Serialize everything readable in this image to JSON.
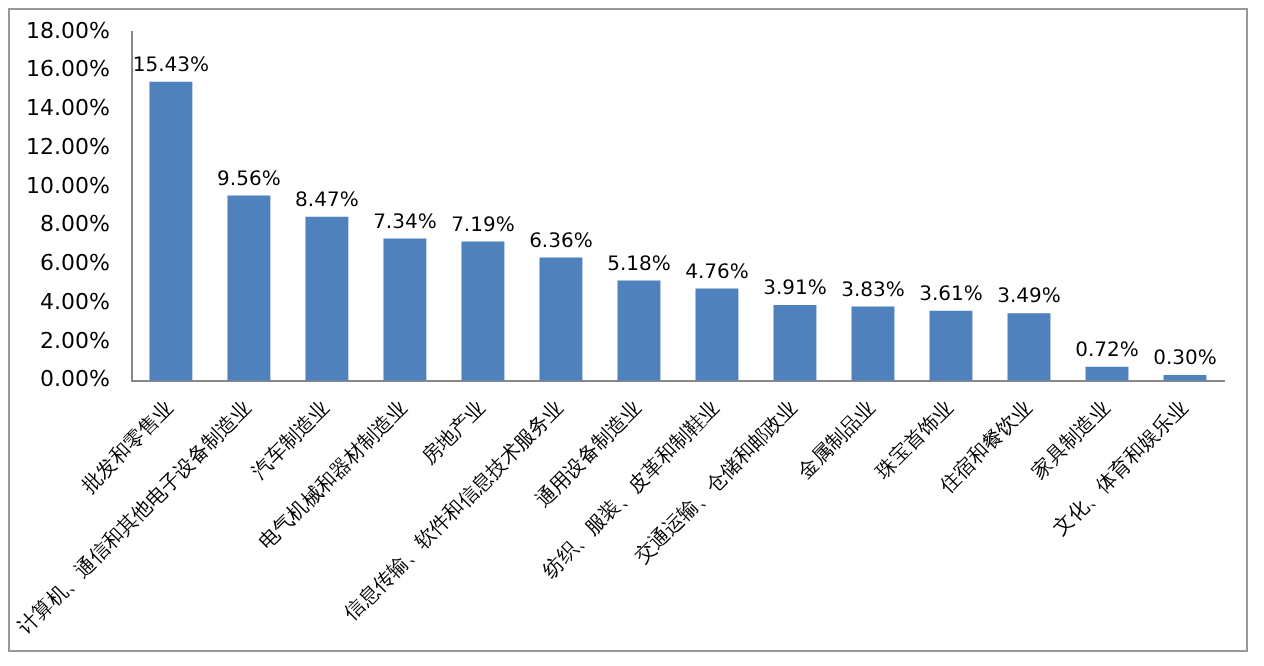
{
  "chart_data": {
    "type": "bar",
    "categories": [
      "批发和零售业",
      "计算机、通信和其他电子设备制造业",
      "汽车制造业",
      "电气机械和器材制造业",
      "房地产业",
      "信息传输、软件和信息技术服务业",
      "通用设备制造业",
      "纺织、服装、皮革和制鞋业",
      "交通运输、仓储和邮政业",
      "金属制品业",
      "珠宝首饰业",
      "住宿和餐饮业",
      "家具制造业",
      "文化、体育和娱乐业"
    ],
    "values": [
      15.43,
      9.56,
      8.47,
      7.34,
      7.19,
      6.36,
      5.18,
      4.76,
      3.91,
      3.83,
      3.61,
      3.49,
      0.72,
      0.3
    ],
    "value_labels": [
      "15.43%",
      "9.56%",
      "8.47%",
      "7.34%",
      "7.19%",
      "6.36%",
      "5.18%",
      "4.76%",
      "3.91%",
      "3.83%",
      "3.61%",
      "3.49%",
      "0.72%",
      "0.30%"
    ],
    "color": "#4f81bd",
    "ylim": [
      0,
      18
    ],
    "yticks": [
      {
        "value": 0,
        "label": "0.00%"
      },
      {
        "value": 2,
        "label": "2.00%"
      },
      {
        "value": 4,
        "label": "4.00%"
      },
      {
        "value": 6,
        "label": "6.00%"
      },
      {
        "value": 8,
        "label": "8.00%"
      },
      {
        "value": 10,
        "label": "10.00%"
      },
      {
        "value": 12,
        "label": "12.00%"
      },
      {
        "value": 14,
        "label": "14.00%"
      },
      {
        "value": 16,
        "label": "16.00%"
      },
      {
        "value": 18,
        "label": "18.00%"
      }
    ],
    "grid": false,
    "legend": false
  }
}
